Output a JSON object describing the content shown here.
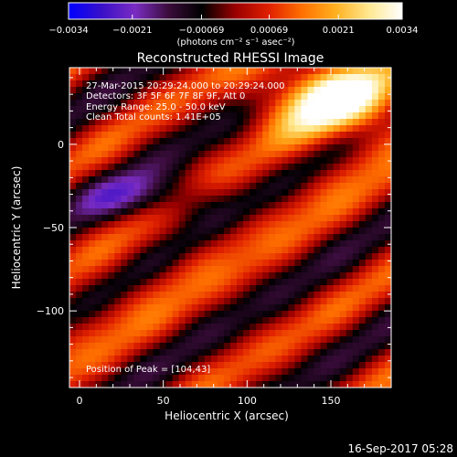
{
  "chart_data": {
    "type": "heatmap",
    "title": "Reconstructed RHESSI Image",
    "xlabel": "Heliocentric X (arcsec)",
    "ylabel": "Heliocentric Y (arcsec)",
    "xlim": [
      -6,
      186
    ],
    "ylim": [
      -146,
      46
    ],
    "x_ticks": [
      "0",
      "50",
      "100",
      "150"
    ],
    "x_tick_values": [
      0,
      50,
      100,
      150
    ],
    "y_ticks": [
      "0",
      "−50",
      "−100"
    ],
    "y_tick_values": [
      0,
      -50,
      -100
    ],
    "colorbar": {
      "tick_labels": [
        "−0.0034",
        "−0.0021",
        "−0.00069",
        "0.00069",
        "0.0021",
        "0.0034"
      ],
      "tick_values": [
        -0.0034,
        -0.0021,
        -0.00069,
        0.00069,
        0.0021,
        0.0034
      ],
      "units": "(photons cm⁻² s⁻¹ asec⁻²)",
      "range": [
        -0.0034,
        0.0034
      ],
      "colors": [
        "#0000ff",
        "#3a10c8",
        "#7a2cc2",
        "#3a0c3a",
        "#000000",
        "#9a0000",
        "#e02000",
        "#ff7000",
        "#ffb020",
        "#ffe890",
        "#ffffff"
      ]
    },
    "annotations": {
      "time": "27-Mar-2015 20:29:24.000 to 20:29:24.000",
      "detectors": "Detectors: 3F 5F 6F 7F 8F 9F, Att 0",
      "energy": "Energy Range: 25.0 - 50.0 keV",
      "clean": "Clean    Total counts: 1.41E+05",
      "peak": "Position of Peak = [104,43]"
    },
    "peak_position": [
      104,
      43
    ],
    "footer_date": "16-Sep-2017 05:28"
  }
}
